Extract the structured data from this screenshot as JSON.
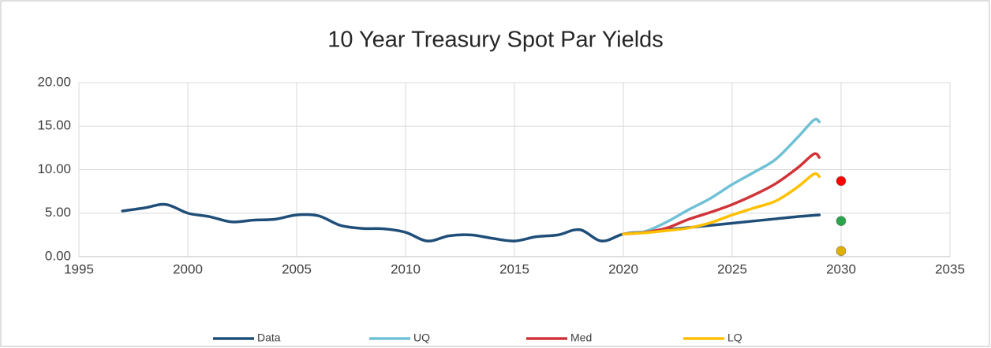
{
  "chart_data": {
    "type": "line",
    "title": "10 Year Treasury Spot Par Yields",
    "xlim": [
      1995,
      2035
    ],
    "xticks": [
      1995,
      2000,
      2005,
      2010,
      2015,
      2020,
      2025,
      2030,
      2035
    ],
    "ylim": [
      0,
      20
    ],
    "yticks": [
      {
        "value": 0,
        "label": "0.00"
      },
      {
        "value": 5,
        "label": "5.00"
      },
      {
        "value": 10,
        "label": "10.00"
      },
      {
        "value": 15,
        "label": "15.00"
      },
      {
        "value": 20,
        "label": "20.00"
      }
    ],
    "grid": true,
    "legend": "bottom",
    "series": [
      {
        "name": "Data",
        "color": "#1f4e79",
        "x": [
          1997,
          1998,
          1999,
          2000,
          2001,
          2002,
          2003,
          2004,
          2005,
          2006,
          2007,
          2008,
          2009,
          2010,
          2011,
          2012,
          2013,
          2014,
          2015,
          2016,
          2017,
          2018,
          2019,
          2020,
          2021,
          2022,
          2023,
          2024,
          2025,
          2026,
          2027,
          2028,
          2029
        ],
        "values": [
          5.25,
          5.6,
          6.0,
          5.0,
          4.6,
          4.0,
          4.2,
          4.3,
          4.8,
          4.7,
          3.6,
          3.25,
          3.2,
          2.8,
          1.8,
          2.4,
          2.5,
          2.1,
          1.8,
          2.3,
          2.5,
          3.1,
          1.8,
          2.6,
          2.85,
          3.1,
          3.35,
          3.6,
          3.85,
          4.1,
          4.35,
          4.6,
          4.8
        ]
      },
      {
        "name": "UQ",
        "color": "#70c1d6",
        "x": [
          2020,
          2021,
          2022,
          2023,
          2024,
          2025,
          2026,
          2027,
          2028,
          2028.75,
          2029
        ],
        "values": [
          2.6,
          2.9,
          4.0,
          5.4,
          6.7,
          8.3,
          9.7,
          11.2,
          13.7,
          15.7,
          15.5
        ]
      },
      {
        "name": "Med",
        "color": "#d13438",
        "x": [
          2020,
          2021,
          2022,
          2023,
          2024,
          2025,
          2026,
          2027,
          2028,
          2028.75,
          2029
        ],
        "values": [
          2.6,
          2.8,
          3.3,
          4.3,
          5.1,
          6.0,
          7.1,
          8.4,
          10.2,
          11.8,
          11.4
        ]
      },
      {
        "name": "LQ",
        "color": "#ffc000",
        "x": [
          2020,
          2021,
          2022,
          2023,
          2024,
          2025,
          2026,
          2027,
          2028,
          2028.75,
          2029
        ],
        "values": [
          2.6,
          2.75,
          3.0,
          3.3,
          3.9,
          4.8,
          5.6,
          6.4,
          8.0,
          9.5,
          9.2
        ]
      }
    ],
    "points": [
      {
        "x": 2030,
        "y": 8.7,
        "color": "#ff0000"
      },
      {
        "x": 2030,
        "y": 4.1,
        "color": "#2aa64a"
      },
      {
        "x": 2030,
        "y": 0.65,
        "color": "#e0b000"
      }
    ]
  }
}
